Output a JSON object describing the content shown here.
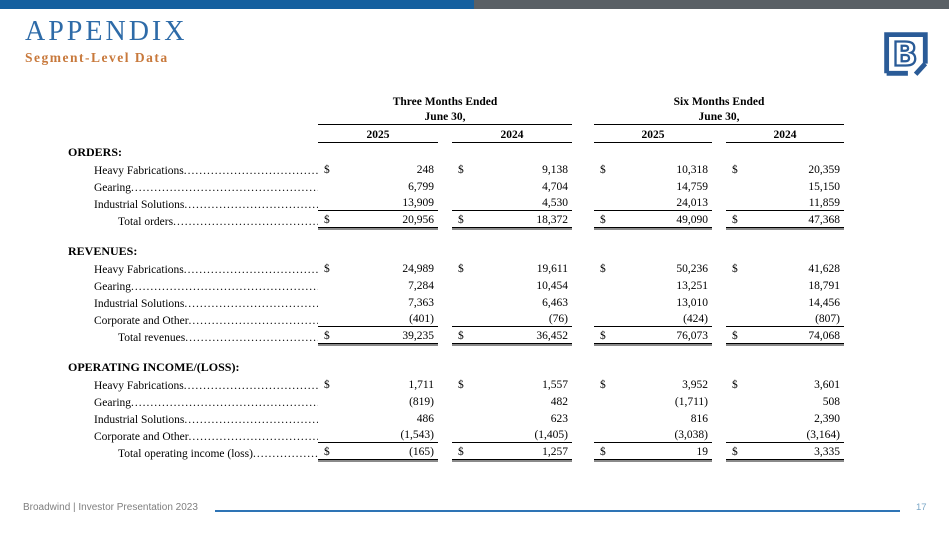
{
  "header": {
    "title": "APPENDIX",
    "subtitle": "Segment-Level Data"
  },
  "logo": {
    "letter": "B"
  },
  "colors": {
    "top_bar_blue": "#15609f",
    "top_bar_gray": "#5a6065",
    "title_blue": "#2e6ba8",
    "subtitle_orange": "#c8793c",
    "footer_line_blue": "#2e74b5",
    "page_number_blue": "#7ba7c7",
    "logo_blue": "#2a5b97"
  },
  "table": {
    "currency": "$",
    "col_groups": [
      {
        "line1": "Three Months Ended",
        "line2": "June 30,",
        "years": [
          "2025",
          "2024"
        ]
      },
      {
        "line1": "Six Months Ended",
        "line2": "June 30,",
        "years": [
          "2025",
          "2024"
        ]
      }
    ],
    "sections": [
      {
        "header": "ORDERS:",
        "rows": [
          {
            "label": "Heavy Fabrications",
            "dollar": true,
            "values": [
              "248",
              "9,138",
              "10,318",
              "20,359"
            ]
          },
          {
            "label": "Gearing",
            "dollar": false,
            "values": [
              "6,799",
              "4,704",
              "14,759",
              "15,150"
            ]
          },
          {
            "label": "Industrial Solutions",
            "dollar": false,
            "underline": true,
            "values": [
              "13,909",
              "4,530",
              "24,013",
              "11,859"
            ]
          },
          {
            "label": "Total orders",
            "dollar": true,
            "total": true,
            "values": [
              "20,956",
              "18,372",
              "49,090",
              "47,368"
            ]
          }
        ]
      },
      {
        "header": "REVENUES:",
        "rows": [
          {
            "label": "Heavy Fabrications",
            "dollar": true,
            "values": [
              "24,989",
              "19,611",
              "50,236",
              "41,628"
            ]
          },
          {
            "label": "Gearing",
            "dollar": false,
            "values": [
              "7,284",
              "10,454",
              "13,251",
              "18,791"
            ]
          },
          {
            "label": "Industrial Solutions",
            "dollar": false,
            "values": [
              "7,363",
              "6,463",
              "13,010",
              "14,456"
            ]
          },
          {
            "label": "Corporate and Other",
            "dollar": false,
            "underline": true,
            "values": [
              "(401)",
              "(76)",
              "(424)",
              "(807)"
            ]
          },
          {
            "label": "Total revenues",
            "dollar": true,
            "total": true,
            "values": [
              "39,235",
              "36,452",
              "76,073",
              "74,068"
            ]
          }
        ]
      },
      {
        "header": "OPERATING INCOME/(LOSS):",
        "rows": [
          {
            "label": "Heavy Fabrications",
            "dollar": true,
            "values": [
              "1,711",
              "1,557",
              "3,952",
              "3,601"
            ]
          },
          {
            "label": "Gearing",
            "dollar": false,
            "values": [
              "(819)",
              "482",
              "(1,711)",
              "508"
            ]
          },
          {
            "label": "Industrial Solutions",
            "dollar": false,
            "values": [
              "486",
              "623",
              "816",
              "2,390"
            ]
          },
          {
            "label": "Corporate and Other",
            "dollar": false,
            "underline": true,
            "values": [
              "(1,543)",
              "(1,405)",
              "(3,038)",
              "(3,164)"
            ]
          },
          {
            "label": "Total operating income (loss)",
            "dollar": true,
            "total": true,
            "values": [
              "(165)",
              "1,257",
              "19",
              "3,335"
            ]
          }
        ]
      }
    ]
  },
  "footer": {
    "left": "Broadwind  | Investor Presentation 2023",
    "page": "17"
  }
}
